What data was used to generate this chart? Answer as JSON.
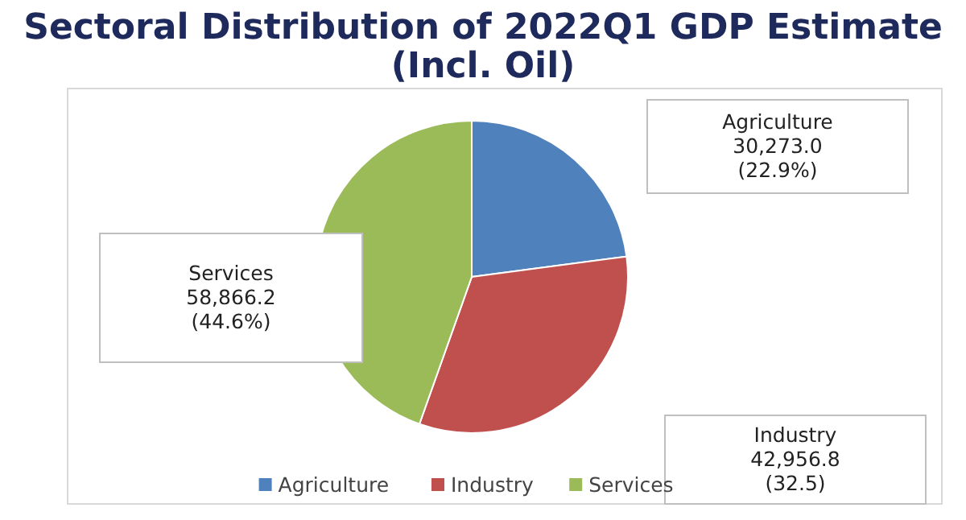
{
  "chart_data": {
    "type": "pie",
    "title": "Sectoral Distribution of 2022Q1 GDP Estimate (Incl. Oil)",
    "categories": [
      "Agriculture",
      "Industry",
      "Services"
    ],
    "values": [
      30273.0,
      42956.8,
      58866.2
    ],
    "colors": [
      "#4f81bd",
      "#c0504d",
      "#9bbb59"
    ],
    "value_labels": [
      "30,273.0\n(22.9%)",
      "42,956.8\n(32.5)",
      "58,866.2\n(44.6%)"
    ],
    "legend": "bottom"
  }
}
